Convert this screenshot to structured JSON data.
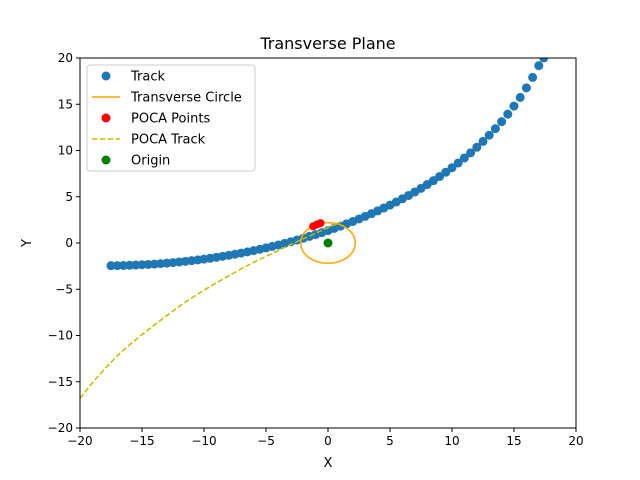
{
  "chart_data": {
    "type": "scatter",
    "title": "Transverse Plane",
    "xlabel": "X",
    "ylabel": "Y",
    "xlim": [
      -20,
      20
    ],
    "ylim": [
      -20,
      20
    ],
    "xticks": [
      -20,
      -15,
      -10,
      -5,
      0,
      5,
      10,
      15,
      20
    ],
    "yticks": [
      -20,
      -15,
      -10,
      -5,
      0,
      5,
      10,
      15,
      20
    ],
    "xtick_labels": [
      "−20",
      "−15",
      "−10",
      "−5",
      "0",
      "5",
      "10",
      "15",
      "20"
    ],
    "ytick_labels": [
      "−20",
      "−15",
      "−10",
      "−5",
      "0",
      "5",
      "10",
      "15",
      "20"
    ],
    "grid": false,
    "legend_position": "top-left",
    "series": [
      {
        "name": "Track",
        "kind": "scatter",
        "color": "#1f77b4",
        "points": [
          [
            -17.5,
            -2.45
          ],
          [
            -17.0,
            -2.45
          ],
          [
            -16.5,
            -2.43
          ],
          [
            -16.0,
            -2.41
          ],
          [
            -15.5,
            -2.38
          ],
          [
            -15.0,
            -2.35
          ],
          [
            -14.5,
            -2.32
          ],
          [
            -14.0,
            -2.28
          ],
          [
            -13.5,
            -2.23
          ],
          [
            -13.0,
            -2.18
          ],
          [
            -12.5,
            -2.12
          ],
          [
            -12.0,
            -2.05
          ],
          [
            -11.5,
            -1.98
          ],
          [
            -11.0,
            -1.91
          ],
          [
            -10.5,
            -1.83
          ],
          [
            -10.0,
            -1.74
          ],
          [
            -9.5,
            -1.65
          ],
          [
            -9.0,
            -1.55
          ],
          [
            -8.5,
            -1.44
          ],
          [
            -8.0,
            -1.33
          ],
          [
            -7.5,
            -1.21
          ],
          [
            -7.0,
            -1.09
          ],
          [
            -6.5,
            -0.96
          ],
          [
            -6.0,
            -0.82
          ],
          [
            -5.5,
            -0.68
          ],
          [
            -5.0,
            -0.53
          ],
          [
            -4.5,
            -0.37
          ],
          [
            -4.0,
            -0.21
          ],
          [
            -3.5,
            -0.04
          ],
          [
            -3.0,
            0.14
          ],
          [
            -2.5,
            0.32
          ],
          [
            -2.0,
            0.51
          ],
          [
            -1.5,
            0.71
          ],
          [
            -1.0,
            0.91
          ],
          [
            -0.5,
            1.12
          ],
          [
            0.0,
            1.34
          ],
          [
            0.5,
            1.58
          ],
          [
            1.0,
            1.82
          ],
          [
            1.5,
            2.07
          ],
          [
            2.0,
            2.33
          ],
          [
            2.5,
            2.6
          ],
          [
            3.0,
            2.88
          ],
          [
            3.5,
            3.17
          ],
          [
            4.0,
            3.47
          ],
          [
            4.5,
            3.78
          ],
          [
            5.0,
            4.1
          ],
          [
            5.5,
            4.43
          ],
          [
            6.0,
            4.78
          ],
          [
            6.5,
            5.14
          ],
          [
            7.0,
            5.52
          ],
          [
            7.5,
            5.91
          ],
          [
            8.0,
            6.32
          ],
          [
            8.5,
            6.74
          ],
          [
            9.0,
            7.19
          ],
          [
            9.5,
            7.65
          ],
          [
            10.0,
            8.14
          ],
          [
            10.5,
            8.65
          ],
          [
            11.0,
            9.19
          ],
          [
            11.5,
            9.75
          ],
          [
            12.0,
            10.35
          ],
          [
            12.5,
            10.98
          ],
          [
            13.0,
            11.65
          ],
          [
            13.5,
            12.36
          ],
          [
            14.0,
            13.12
          ],
          [
            14.5,
            13.93
          ],
          [
            15.0,
            14.8
          ],
          [
            15.5,
            15.74
          ],
          [
            16.0,
            16.77
          ],
          [
            16.5,
            17.9
          ],
          [
            17.0,
            19.17
          ],
          [
            17.4,
            20.0
          ]
        ]
      },
      {
        "name": "Transverse Circle",
        "kind": "circle",
        "color": "#ffa500",
        "center": [
          0,
          0
        ],
        "radius_x": 2.2,
        "radius_y": 2.2
      },
      {
        "name": "POCA Points",
        "kind": "scatter",
        "color": "#ff0000",
        "points": [
          [
            -1.2,
            1.8
          ],
          [
            -0.9,
            2.0
          ],
          [
            -0.6,
            2.15
          ]
        ]
      },
      {
        "name": "POCA Track",
        "kind": "dashed-line",
        "color": "#bfbf00",
        "points": [
          [
            -20.0,
            -16.8
          ],
          [
            -19.0,
            -15.1
          ],
          [
            -18.0,
            -13.6
          ],
          [
            -17.0,
            -12.2
          ],
          [
            -16.0,
            -11.0
          ],
          [
            -15.0,
            -9.9
          ],
          [
            -14.0,
            -8.85
          ],
          [
            -13.0,
            -7.85
          ],
          [
            -12.0,
            -6.85
          ],
          [
            -11.0,
            -5.95
          ],
          [
            -10.0,
            -5.1
          ],
          [
            -9.0,
            -4.3
          ],
          [
            -8.0,
            -3.55
          ],
          [
            -7.0,
            -2.8
          ],
          [
            -6.0,
            -2.1
          ],
          [
            -5.0,
            -1.45
          ],
          [
            -4.0,
            -0.8
          ],
          [
            -3.0,
            -0.15
          ],
          [
            -2.0,
            0.45
          ],
          [
            -1.0,
            1.05
          ],
          [
            0.0,
            1.65
          ],
          [
            1.0,
            2.25
          ]
        ]
      },
      {
        "name": "Origin",
        "kind": "scatter",
        "color": "#008000",
        "points": [
          [
            0,
            0
          ]
        ]
      }
    ]
  }
}
